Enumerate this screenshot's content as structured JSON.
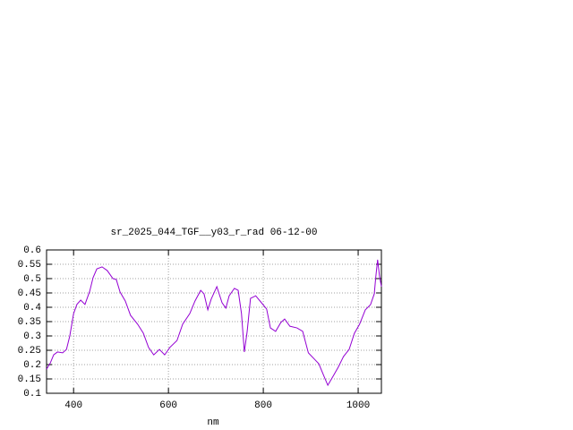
{
  "chart_data": {
    "type": "line",
    "title": "sr_2025_044_TGF__y03_r_rad 06-12-00",
    "x_label": "nm",
    "x": [
      343,
      351,
      358,
      366,
      377,
      385,
      392,
      400,
      407,
      415,
      424,
      434,
      441,
      449,
      460,
      471,
      483,
      490,
      498,
      509,
      520,
      535,
      547,
      558,
      569,
      581,
      592,
      603,
      618,
      630,
      645,
      656,
      668,
      675,
      683,
      690,
      702,
      713,
      721,
      728,
      739,
      747,
      754,
      760,
      766,
      773,
      784,
      796,
      807,
      815,
      826,
      837,
      845,
      856,
      871,
      883,
      895,
      906,
      917,
      928,
      936,
      947,
      958,
      969,
      981,
      992,
      1003,
      1015,
      1026,
      1034,
      1037,
      1041,
      1045,
      1049
    ],
    "series": [
      {
        "color": "#9400d3",
        "values": [
          0.184,
          0.206,
          0.234,
          0.244,
          0.241,
          0.253,
          0.3,
          0.378,
          0.41,
          0.425,
          0.41,
          0.456,
          0.503,
          0.534,
          0.541,
          0.528,
          0.5,
          0.497,
          0.453,
          0.422,
          0.372,
          0.341,
          0.31,
          0.26,
          0.234,
          0.253,
          0.234,
          0.26,
          0.284,
          0.341,
          0.378,
          0.422,
          0.459,
          0.447,
          0.391,
          0.428,
          0.472,
          0.416,
          0.397,
          0.44,
          0.466,
          0.459,
          0.378,
          0.244,
          0.316,
          0.431,
          0.44,
          0.416,
          0.394,
          0.328,
          0.316,
          0.347,
          0.359,
          0.334,
          0.328,
          0.316,
          0.241,
          0.222,
          0.203,
          0.159,
          0.128,
          0.159,
          0.191,
          0.228,
          0.253,
          0.309,
          0.341,
          0.391,
          0.409,
          0.447,
          0.503,
          0.566,
          0.509,
          0.472
        ]
      }
    ],
    "xlim": [
      343,
      1049
    ],
    "xticks": [
      400,
      600,
      800,
      1000
    ],
    "ylim": [
      0.1,
      0.6
    ],
    "yticks": [
      0.1,
      0.15,
      0.2,
      0.25,
      0.3,
      0.35,
      0.4,
      0.45,
      0.5,
      0.55,
      0.6
    ],
    "grid": true
  }
}
